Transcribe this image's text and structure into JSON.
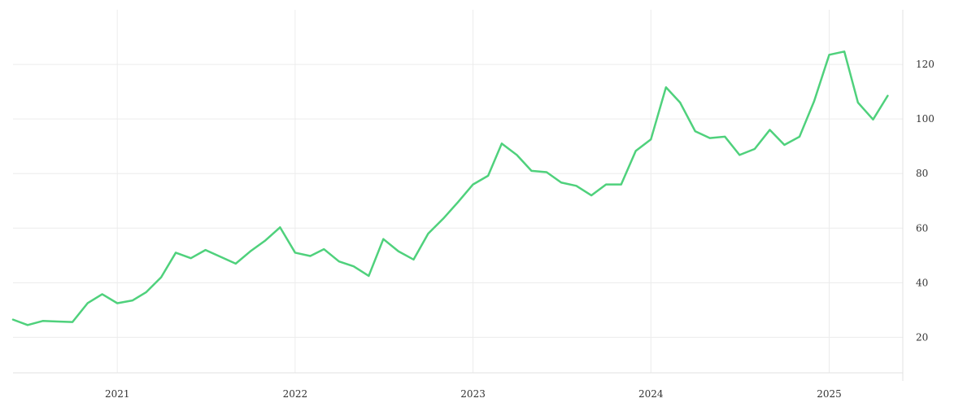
{
  "chart_data": {
    "type": "line",
    "title": "",
    "xlabel": "",
    "ylabel": "",
    "x_axis": {
      "range": [
        "2020-06-01",
        "2025-06-01"
      ],
      "tick_labels": [
        "2021",
        "2022",
        "2023",
        "2024",
        "2025"
      ],
      "tick_dates": [
        "2021-01-01",
        "2022-01-01",
        "2023-01-01",
        "2024-01-01",
        "2025-01-01"
      ]
    },
    "y_axis": {
      "position": "right",
      "range": [
        7,
        140
      ],
      "tick_labels": [
        "20",
        "40",
        "60",
        "80",
        "100",
        "120"
      ],
      "tick_values": [
        20,
        40,
        60,
        80,
        100,
        120
      ]
    },
    "grid": true,
    "legend": "none",
    "series": [
      {
        "color": "#4fd17c",
        "points": [
          [
            "2020-06-01",
            26.5
          ],
          [
            "2020-07-01",
            24.5
          ],
          [
            "2020-08-01",
            26
          ],
          [
            "2020-09-01",
            25.8
          ],
          [
            "2020-10-01",
            25.6
          ],
          [
            "2020-11-01",
            32.5
          ],
          [
            "2020-12-01",
            35.8
          ],
          [
            "2021-01-01",
            32.5
          ],
          [
            "2021-02-01",
            33.5
          ],
          [
            "2021-03-01",
            36.5
          ],
          [
            "2021-04-01",
            42
          ],
          [
            "2021-05-01",
            51
          ],
          [
            "2021-06-01",
            49
          ],
          [
            "2021-07-01",
            52
          ],
          [
            "2021-08-01",
            49.5
          ],
          [
            "2021-09-01",
            47
          ],
          [
            "2021-10-01",
            51.5
          ],
          [
            "2021-11-01",
            55.5
          ],
          [
            "2021-12-01",
            60.3
          ],
          [
            "2022-01-01",
            51
          ],
          [
            "2022-02-01",
            49.8
          ],
          [
            "2022-03-01",
            52.3
          ],
          [
            "2022-04-01",
            47.8
          ],
          [
            "2022-05-01",
            46
          ],
          [
            "2022-06-01",
            42.5
          ],
          [
            "2022-07-01",
            56
          ],
          [
            "2022-08-01",
            51.5
          ],
          [
            "2022-09-01",
            48.5
          ],
          [
            "2022-10-01",
            58
          ],
          [
            "2022-11-01",
            63.5
          ],
          [
            "2022-12-01",
            69.5
          ],
          [
            "2023-01-01",
            76
          ],
          [
            "2023-02-01",
            79.2
          ],
          [
            "2023-03-01",
            91
          ],
          [
            "2023-04-01",
            86.8
          ],
          [
            "2023-05-01",
            81
          ],
          [
            "2023-06-01",
            80.5
          ],
          [
            "2023-07-01",
            76.7
          ],
          [
            "2023-08-01",
            75.5
          ],
          [
            "2023-09-01",
            72
          ],
          [
            "2023-10-01",
            76
          ],
          [
            "2023-11-01",
            76
          ],
          [
            "2023-12-01",
            88.3
          ],
          [
            "2024-01-01",
            92.5
          ],
          [
            "2024-02-01",
            111.6
          ],
          [
            "2024-03-01",
            106
          ],
          [
            "2024-04-01",
            95.5
          ],
          [
            "2024-05-01",
            93
          ],
          [
            "2024-06-01",
            93.5
          ],
          [
            "2024-07-01",
            86.8
          ],
          [
            "2024-08-01",
            89
          ],
          [
            "2024-09-01",
            96
          ],
          [
            "2024-10-01",
            90.5
          ],
          [
            "2024-11-01",
            93.5
          ],
          [
            "2024-12-01",
            106.5
          ],
          [
            "2025-01-01",
            123.5
          ],
          [
            "2025-02-01",
            124.7
          ],
          [
            "2025-03-01",
            106
          ],
          [
            "2025-04-01",
            99.8
          ],
          [
            "2025-05-01",
            108.5
          ]
        ]
      }
    ]
  }
}
